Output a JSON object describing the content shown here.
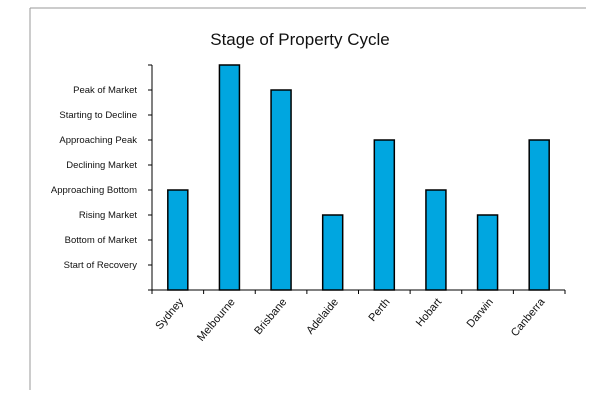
{
  "chart_data": {
    "type": "bar",
    "title": "Stage of Property Cycle",
    "xlabel": "",
    "ylabel": "",
    "categories": [
      "Sydney",
      "Melbourne",
      "Brisbane",
      "Adelaide",
      "Perth",
      "Hobart",
      "Darwin",
      "Canberra"
    ],
    "stage_labels": [
      "Start of Recovery",
      "Bottom of Market",
      "Rising Market",
      "Approaching Bottom",
      "Declining Market",
      "Approaching Peak",
      "Starting to Decline",
      "Peak of Market"
    ],
    "stage_values": [
      1,
      2,
      3,
      4,
      5,
      6,
      7,
      8
    ],
    "values": [
      4,
      9,
      8,
      3,
      6,
      4,
      3,
      6
    ],
    "ylim": [
      0,
      9
    ],
    "bar_color": "#00a6e0",
    "bar_edge_color": "#000000",
    "grid": false,
    "legend": "none"
  }
}
